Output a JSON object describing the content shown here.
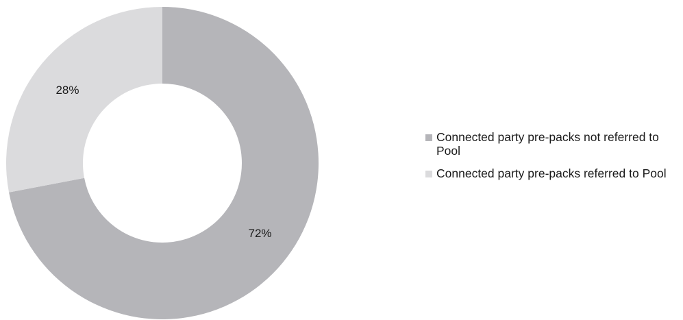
{
  "chart_data": {
    "type": "pie",
    "variant": "donut",
    "title": "",
    "series": [
      {
        "name": "Connected party pre-packs not referred to Pool",
        "value": 72,
        "label": "72%",
        "color": "#b5b5b9"
      },
      {
        "name": "Connected party pre-packs referred to Pool",
        "value": 28,
        "label": "28%",
        "color": "#dbdbdd"
      }
    ],
    "legend_position": "right"
  }
}
